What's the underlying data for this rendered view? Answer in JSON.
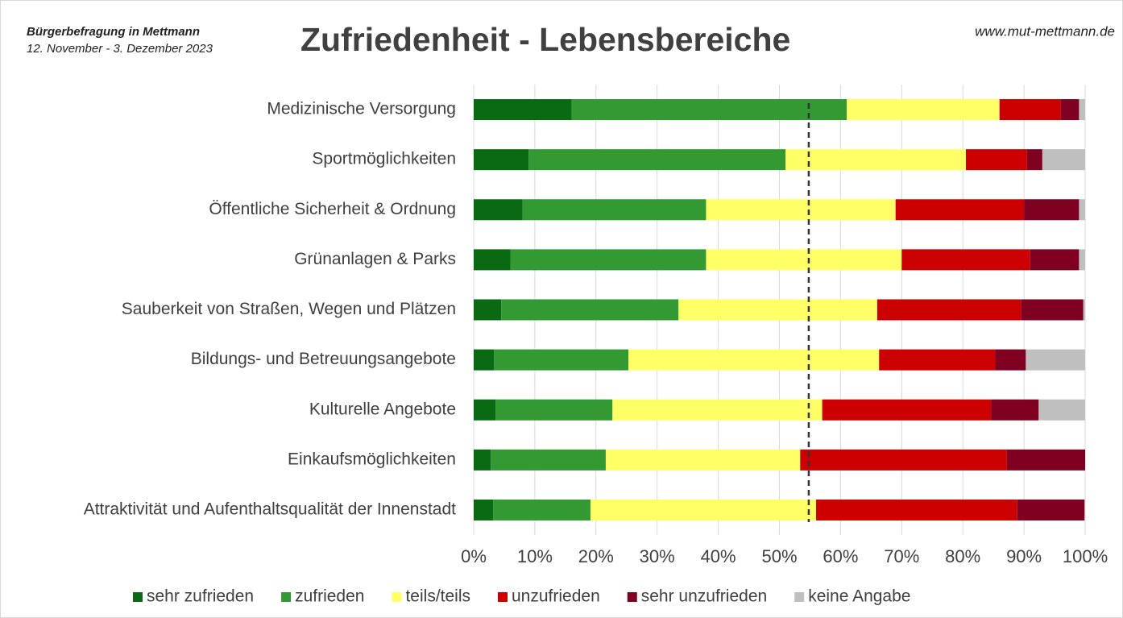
{
  "chart_data": {
    "type": "stacked_bar_horizontal",
    "source": "Bürgerbefragung in Mettmann",
    "date": "12. November - 3. Dezember 2023",
    "title": "Zufriedenheit - Lebensbereiche",
    "url": "www.mut-mettmann.de",
    "categories": [
      "Medizinische Versorgung",
      "Sportmöglichkeiten",
      "Öffentliche Sicherheit & Ordnung",
      "Grünanlagen & Parks",
      "Sauberkeit von Straßen, Wegen und Plätzen",
      "Bildungs- und Betreuungsangebote",
      "Kulturelle Angebote",
      "Einkaufsmöglichkeiten",
      "Attraktivität und Aufenthaltsqualität der Innenstadt"
    ],
    "series": [
      {
        "name": "sehr zufrieden",
        "color": "#0a6a14",
        "values": [
          16,
          9,
          8,
          6,
          4.5,
          3.3,
          3.6,
          2.8,
          3.2
        ]
      },
      {
        "name": "zufrieden",
        "color": "#339933",
        "values": [
          45,
          42,
          30,
          32,
          29,
          22,
          19.1,
          18.8,
          15.9
        ]
      },
      {
        "name": "teils/teils",
        "color": "#ffff66",
        "values": [
          25,
          29.5,
          31,
          32,
          32.5,
          41,
          34.3,
          31.8,
          36.9
        ]
      },
      {
        "name": "unzufrieden",
        "color": "#cc0000",
        "values": [
          10,
          10,
          21,
          21,
          23.5,
          19,
          27.6,
          33.8,
          32.9
        ]
      },
      {
        "name": "sehr unzufrieden",
        "color": "#7f0020",
        "values": [
          3,
          2.5,
          9,
          8,
          10.2,
          5,
          7.8,
          12.8,
          11
        ]
      },
      {
        "name": "keine Angabe",
        "color": "#bfbfbf",
        "values": [
          1,
          7,
          1,
          1,
          0.3,
          9.7,
          7.6,
          0,
          0.1
        ]
      }
    ],
    "xlim": [
      0,
      100
    ],
    "xticks": [
      {
        "value": 0,
        "label": "0%"
      },
      {
        "value": 10,
        "label": "10%"
      },
      {
        "value": 20,
        "label": "20%"
      },
      {
        "value": 30,
        "label": "30%"
      },
      {
        "value": 40,
        "label": "40%"
      },
      {
        "value": 50,
        "label": "50%"
      },
      {
        "value": 60,
        "label": "60%"
      },
      {
        "value": 70,
        "label": "70%"
      },
      {
        "value": 80,
        "label": "80%"
      },
      {
        "value": 90,
        "label": "90%"
      },
      {
        "value": 100,
        "label": "100%"
      }
    ],
    "reference_line": 54.8,
    "grid": true,
    "legend": "bottom"
  }
}
